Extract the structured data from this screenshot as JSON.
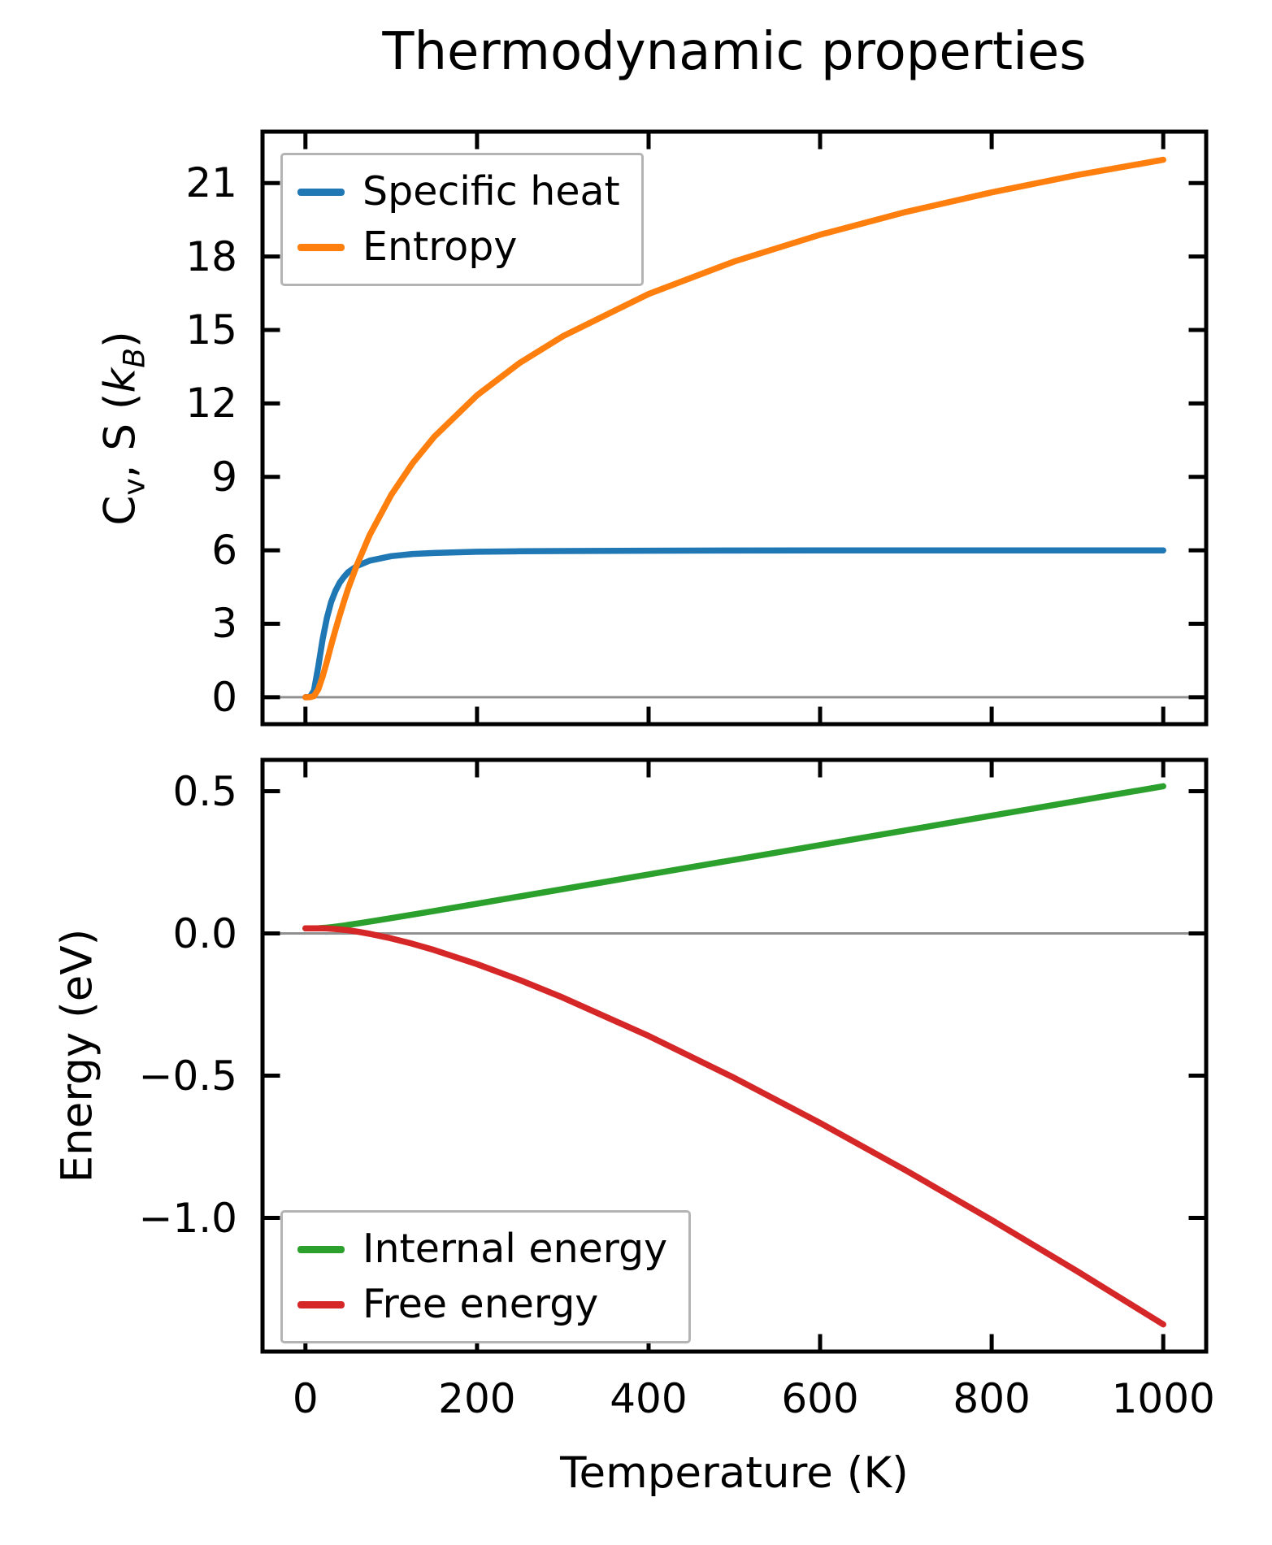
{
  "style": {
    "background": "#ffffff",
    "axis_color": "#000000",
    "text_color": "#000000",
    "zero_line_color": "#909090",
    "legend_border_color": "#b4b4b4"
  },
  "chart_data": [
    {
      "type": "line",
      "title": "Thermodynamic properties",
      "xlabel": "",
      "ylabel": "Cv, S (kB)",
      "ylabel_parts": {
        "c": "C",
        "c_sub": "v",
        "mid": ", S (",
        "k": "k",
        "k_sub": "B",
        "end": ")"
      },
      "xlim": [
        -50,
        1050
      ],
      "ylim": [
        -1.1,
        23.1
      ],
      "xticks": [
        0,
        200,
        400,
        600,
        800,
        1000
      ],
      "xtick_labels": [
        "0",
        "200",
        "400",
        "600",
        "800",
        "1000"
      ],
      "show_xtick_labels": false,
      "yticks": [
        0,
        3,
        6,
        9,
        12,
        15,
        18,
        21
      ],
      "ytick_labels": [
        "0",
        "3",
        "6",
        "9",
        "12",
        "15",
        "18",
        "21"
      ],
      "grid": false,
      "zero_line": 0,
      "legend_position": "upper-left",
      "x": [
        0,
        5,
        10,
        15,
        20,
        25,
        30,
        35,
        40,
        45,
        50,
        60,
        75,
        100,
        125,
        150,
        200,
        250,
        300,
        400,
        500,
        600,
        700,
        800,
        900,
        1000
      ],
      "series": [
        {
          "name": "Specific heat",
          "color": "#1f77b4",
          "values": [
            0,
            0.001,
            0.27,
            1.25,
            2.36,
            3.24,
            3.89,
            4.34,
            4.68,
            4.92,
            5.11,
            5.36,
            5.58,
            5.76,
            5.85,
            5.89,
            5.94,
            5.96,
            5.97,
            5.985,
            5.99,
            5.993,
            5.995,
            5.996,
            5.997,
            5.998
          ]
        },
        {
          "name": "Entropy",
          "color": "#ff7f0e",
          "values": [
            0,
            0.001,
            0.044,
            0.32,
            0.84,
            1.46,
            2.12,
            2.75,
            3.35,
            3.92,
            4.45,
            5.4,
            6.63,
            8.26,
            9.56,
            10.63,
            12.33,
            13.66,
            14.74,
            16.47,
            17.8,
            18.89,
            19.82,
            20.62,
            21.33,
            21.95
          ]
        }
      ]
    },
    {
      "type": "line",
      "title": "",
      "xlabel": "Temperature (K)",
      "ylabel": "Energy (eV)",
      "xlim": [
        -50,
        1050
      ],
      "ylim": [
        -1.47,
        0.61
      ],
      "xticks": [
        0,
        200,
        400,
        600,
        800,
        1000
      ],
      "xtick_labels": [
        "0",
        "200",
        "400",
        "600",
        "800",
        "1000"
      ],
      "show_xtick_labels": true,
      "yticks": [
        -1.0,
        -0.5,
        0.0,
        0.5
      ],
      "ytick_labels": [
        "−1.0",
        "−0.5",
        "0.0",
        "0.5"
      ],
      "grid": false,
      "zero_line": 0,
      "legend_position": "lower-left",
      "x": [
        0,
        5,
        10,
        15,
        20,
        25,
        30,
        35,
        40,
        45,
        50,
        60,
        75,
        100,
        125,
        150,
        200,
        250,
        300,
        400,
        500,
        600,
        700,
        800,
        900,
        1000
      ],
      "series": [
        {
          "name": "Internal energy",
          "color": "#2ca02c",
          "values": [
            0.0181,
            0.0181,
            0.0181,
            0.0184,
            0.0192,
            0.0204,
            0.022,
            0.0238,
            0.0257,
            0.0278,
            0.0299,
            0.0345,
            0.0416,
            0.0538,
            0.0663,
            0.0789,
            0.1044,
            0.1301,
            0.1558,
            0.2073,
            0.2589,
            0.3106,
            0.3622,
            0.4139,
            0.4656,
            0.5173
          ]
        },
        {
          "name": "Free energy",
          "color": "#d62728",
          "values": [
            0.0181,
            0.0181,
            0.0181,
            0.018,
            0.0178,
            0.0173,
            0.0165,
            0.0155,
            0.0141,
            0.0126,
            0.0108,
            0.0065,
            -0.0013,
            -0.0174,
            -0.0366,
            -0.0584,
            -0.1081,
            -0.1641,
            -0.2254,
            -0.3602,
            -0.5081,
            -0.6662,
            -0.8332,
            -1.0075,
            -1.1883,
            -1.3745
          ]
        }
      ]
    }
  ]
}
